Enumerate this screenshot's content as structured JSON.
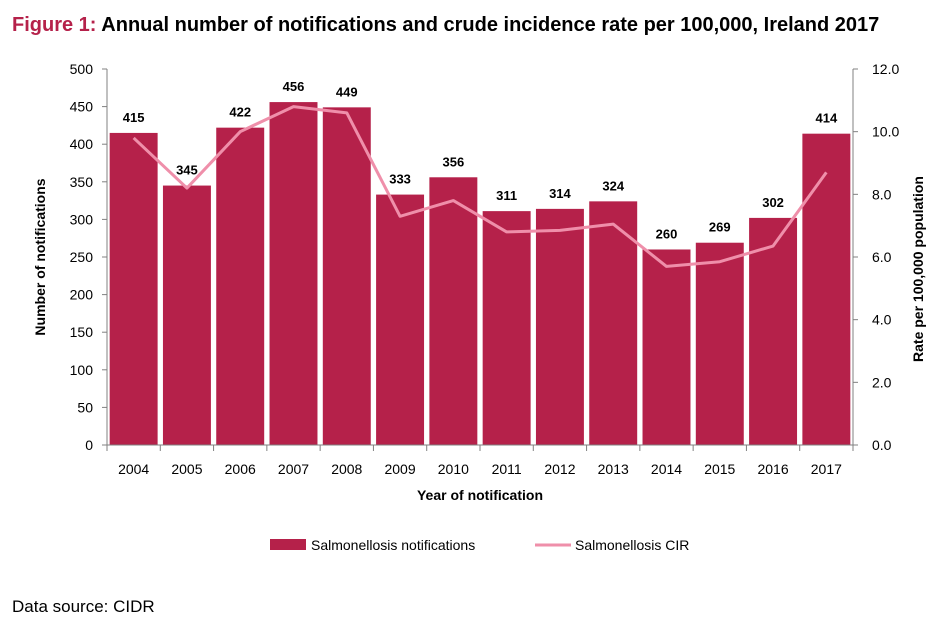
{
  "title": {
    "label": "Figure 1:",
    "text": "Annual number of notifications and crude incidence rate per 100,000, Ireland 2017"
  },
  "source": "Data source: CIDR",
  "colors": {
    "bar": "#b5214a",
    "line": "#ef8faa",
    "title_label": "#b5214a",
    "axis": "#808080"
  },
  "chart_data": {
    "type": "bar",
    "title": "Annual number of notifications and crude incidence rate per 100,000, Ireland 2017",
    "xlabel": "Year of notification",
    "ylabel": "Number of notifications",
    "y2label": "Rate per 100,000 population",
    "ylim": [
      0,
      500
    ],
    "y2lim": [
      0,
      12
    ],
    "yticks": [
      "0",
      "50",
      "100",
      "150",
      "200",
      "250",
      "300",
      "350",
      "400",
      "450",
      "500"
    ],
    "y2ticks": [
      "0.0",
      "2.0",
      "4.0",
      "6.0",
      "8.0",
      "10.0",
      "12.0"
    ],
    "categories": [
      "2004",
      "2005",
      "2006",
      "2007",
      "2008",
      "2009",
      "2010",
      "2011",
      "2012",
      "2013",
      "2014",
      "2015",
      "2016",
      "2017"
    ],
    "series": [
      {
        "name": "Salmonellosis notifications",
        "type": "bar",
        "axis": "left",
        "values": [
          415,
          345,
          422,
          456,
          449,
          333,
          356,
          311,
          314,
          324,
          260,
          269,
          302,
          414
        ]
      },
      {
        "name": "Salmonellosis CIR",
        "type": "line",
        "axis": "right",
        "values": [
          9.8,
          8.2,
          10.0,
          10.8,
          10.6,
          7.3,
          7.8,
          6.8,
          6.85,
          7.05,
          5.7,
          5.85,
          6.35,
          8.7
        ]
      }
    ],
    "legend": "bottom-center"
  }
}
